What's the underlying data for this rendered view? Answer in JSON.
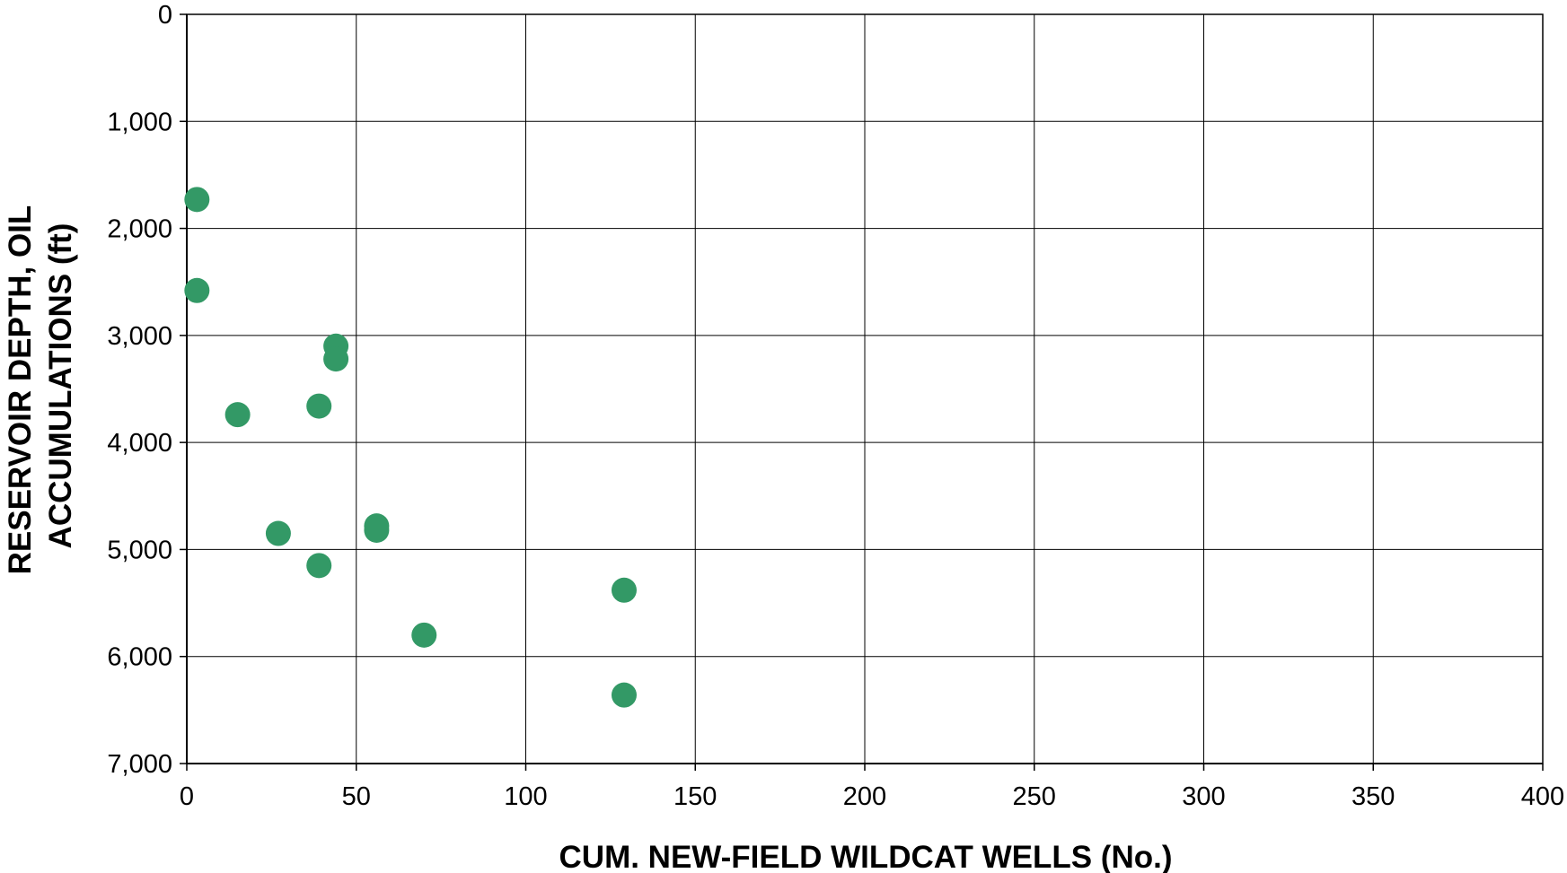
{
  "chart_data": {
    "type": "scatter",
    "title": "",
    "xlabel": "CUM. NEW-FIELD WILDCAT WELLS (No.)",
    "ylabel_lines": [
      "RESERVOIR DEPTH, OIL",
      "ACCUMULATIONS (ft)"
    ],
    "xlim": [
      0,
      400
    ],
    "ylim": [
      0,
      7000
    ],
    "y_inverted": true,
    "grid": true,
    "legend": "none",
    "x_ticks": [
      0,
      50,
      100,
      150,
      200,
      250,
      300,
      350,
      400
    ],
    "y_ticks": [
      0,
      1000,
      2000,
      3000,
      4000,
      5000,
      6000,
      7000
    ],
    "x_tick_labels": [
      "0",
      "50",
      "100",
      "150",
      "200",
      "250",
      "300",
      "350",
      "400"
    ],
    "y_tick_labels": [
      "0",
      "1,000",
      "2,000",
      "3,000",
      "4,000",
      "5,000",
      "6,000",
      "7,000"
    ],
    "marker_color": "#339966",
    "points": [
      {
        "x": 3,
        "y": 1730
      },
      {
        "x": 3,
        "y": 2580
      },
      {
        "x": 15,
        "y": 3740
      },
      {
        "x": 27,
        "y": 4850
      },
      {
        "x": 39,
        "y": 3660
      },
      {
        "x": 39,
        "y": 5150
      },
      {
        "x": 44,
        "y": 3100
      },
      {
        "x": 44,
        "y": 3220
      },
      {
        "x": 56,
        "y": 4780
      },
      {
        "x": 56,
        "y": 4820
      },
      {
        "x": 70,
        "y": 5800
      },
      {
        "x": 129,
        "y": 5380
      },
      {
        "x": 129,
        "y": 6360
      }
    ]
  }
}
